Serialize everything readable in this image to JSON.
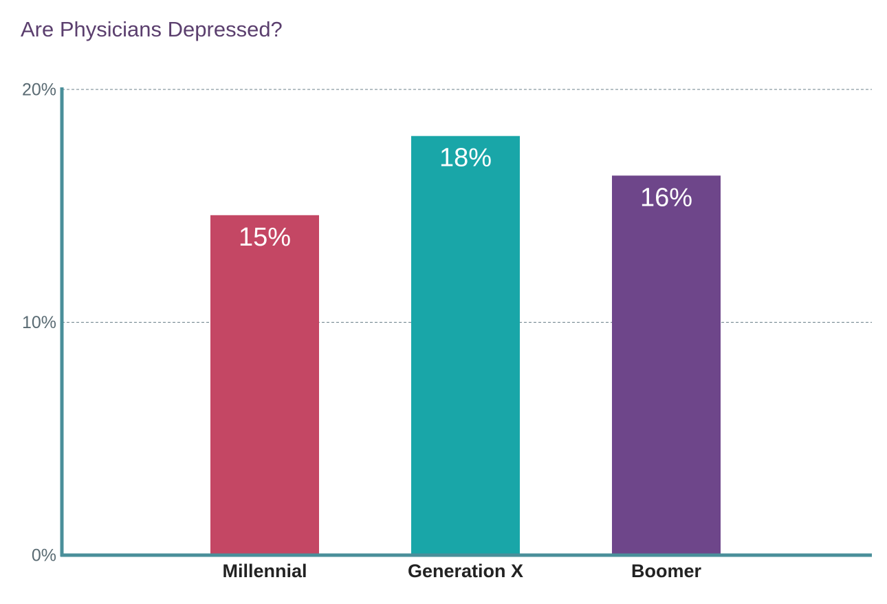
{
  "chart_data": {
    "type": "bar",
    "title": "Are Physicians Depressed?",
    "categories": [
      "Millennial",
      "Generation X",
      "Boomer"
    ],
    "values": [
      14.6,
      18,
      16.3
    ],
    "value_labels": [
      "15%",
      "18%",
      "16%"
    ],
    "colors": [
      "#c44764",
      "#19a6a8",
      "#6e468a"
    ],
    "ylim": [
      0,
      20
    ],
    "yticks": [
      {
        "value": 0,
        "label": "0%"
      },
      {
        "value": 10,
        "label": "10%"
      },
      {
        "value": 20,
        "label": "20%"
      }
    ],
    "grid": true
  }
}
